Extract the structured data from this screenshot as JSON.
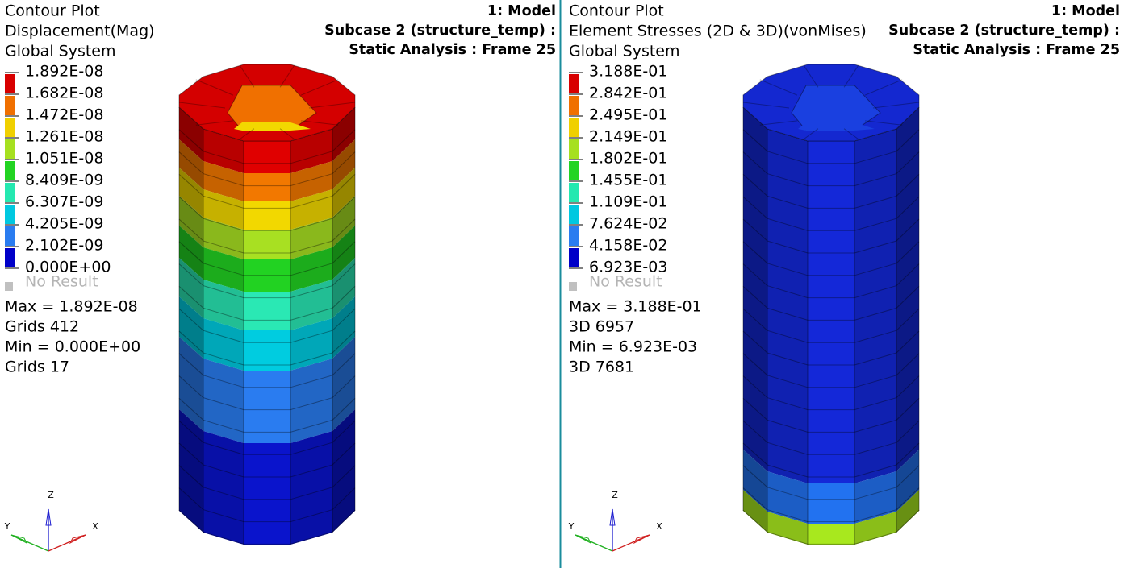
{
  "panels": [
    {
      "title": "Contour Plot",
      "result": "Displacement(Mag)",
      "system": "Global System",
      "model": "1: Model",
      "subcase": "Subcase 2 (structure_temp) :",
      "analysis": "Static Analysis : Frame 25",
      "legend": [
        "1.892E-08",
        "1.682E-08",
        "1.472E-08",
        "1.261E-08",
        "1.051E-08",
        "8.409E-09",
        "6.307E-09",
        "4.205E-09",
        "2.102E-09",
        "0.000E+00"
      ],
      "no_result": "No Result",
      "stats": [
        "Max =  1.892E-08",
        "Grids 412",
        "Min =  0.000E+00",
        "Grids 17"
      ],
      "triad": {
        "z": "Z",
        "y": "Y",
        "x": "X"
      }
    },
    {
      "title": "Contour Plot",
      "result": "Element Stresses (2D & 3D)(vonMises)",
      "system": "Global System",
      "model": "1: Model",
      "subcase": "Subcase 2 (structure_temp) :",
      "analysis": "Static Analysis : Frame 25",
      "legend": [
        "3.188E-01",
        "2.842E-01",
        "2.495E-01",
        "2.149E-01",
        "1.802E-01",
        "1.455E-01",
        "1.109E-01",
        "7.624E-02",
        "4.158E-02",
        "6.923E-03"
      ],
      "no_result": "No Result",
      "stats": [
        "Max =  3.188E-01",
        "3D 6957",
        "Min =  6.923E-03",
        "3D 7681"
      ],
      "triad": {
        "z": "Z",
        "y": "Y",
        "x": "X"
      }
    }
  ]
}
